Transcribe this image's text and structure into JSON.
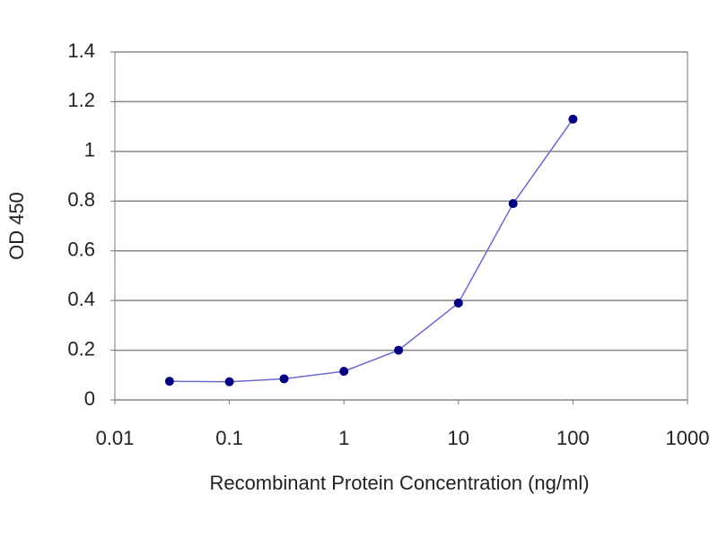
{
  "chart_data": {
    "type": "line",
    "x_label": "Recombinant Protein Concentration (ng/ml)",
    "y_label": "OD 450",
    "xscale": "log",
    "xlim": [
      0.01,
      1000
    ],
    "xticks": [
      0.01,
      0.1,
      1,
      10,
      100,
      1000
    ],
    "ylim": [
      0,
      1.4
    ],
    "yticks": [
      0,
      0.2,
      0.4,
      0.6,
      0.8,
      1,
      1.2,
      1.4
    ],
    "grid": true,
    "x": [
      0.03,
      0.1,
      0.3,
      1,
      3,
      10,
      30,
      100
    ],
    "series": [
      {
        "color": "#6a6ad0",
        "marker_color": "#000080",
        "values": [
          0.075,
          0.073,
          0.085,
          0.115,
          0.2,
          0.39,
          0.79,
          1.13
        ]
      }
    ]
  }
}
